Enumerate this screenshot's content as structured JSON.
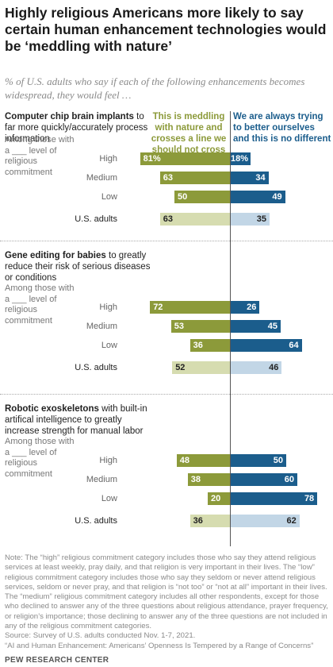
{
  "title": "Highly religious Americans more likely to say certain human enhancement technologies would be ‘meddling with nature’",
  "subtitle": "% of U.S. adults who say if each of the following enhancements becomes widespread, they would feel …",
  "colors": {
    "meddle_strong": "#8c9a3a",
    "meddle_light": "#d6dcb0",
    "better_strong": "#1b5d8c",
    "better_light": "#c2d6e6"
  },
  "headers": {
    "left": "This is meddling with nature and crosses a line we should not cross",
    "right": "We are always trying to better ourselves and this is no different"
  },
  "group_label": "Among those with a ___ level of religious commitment",
  "row_labels": [
    "High",
    "Medium",
    "Low",
    "U.S. adults"
  ],
  "chart_data": [
    {
      "type": "bar",
      "title_bold": "Computer chip brain implants",
      "title_rest": " to far more quickly/accurately process information",
      "categories": [
        "High",
        "Medium",
        "Low",
        "U.S. adults"
      ],
      "series": [
        {
          "name": "This is meddling with nature and crosses a line we should not cross",
          "values": [
            81,
            63,
            50,
            63
          ],
          "labels": [
            "81%",
            "63",
            "50",
            "63"
          ]
        },
        {
          "name": "We are always trying to better ourselves and this is no different",
          "values": [
            18,
            34,
            49,
            35
          ],
          "labels": [
            "18%",
            "34",
            "49",
            "35"
          ]
        }
      ]
    },
    {
      "type": "bar",
      "title_bold": "Gene editing for babies",
      "title_rest": " to greatly reduce their risk of serious diseases or conditions",
      "categories": [
        "High",
        "Medium",
        "Low",
        "U.S. adults"
      ],
      "series": [
        {
          "name": "This is meddling with nature and crosses a line we should not cross",
          "values": [
            72,
            53,
            36,
            52
          ],
          "labels": [
            "72",
            "53",
            "36",
            "52"
          ]
        },
        {
          "name": "We are always trying to better ourselves and this is no different",
          "values": [
            26,
            45,
            64,
            46
          ],
          "labels": [
            "26",
            "45",
            "64",
            "46"
          ]
        }
      ]
    },
    {
      "type": "bar",
      "title_bold": "Robotic exoskeletons",
      "title_rest": " with built-in artifical intelligence to greatly increase strength for manual labor",
      "categories": [
        "High",
        "Medium",
        "Low",
        "U.S. adults"
      ],
      "series": [
        {
          "name": "This is meddling with nature and crosses a line we should not cross",
          "values": [
            48,
            38,
            20,
            36
          ],
          "labels": [
            "48",
            "38",
            "20",
            "36"
          ]
        },
        {
          "name": "We are always trying to better ourselves and this is no different",
          "values": [
            50,
            60,
            78,
            62
          ],
          "labels": [
            "50",
            "60",
            "78",
            "62"
          ]
        }
      ]
    }
  ],
  "note": "Note: The “high” religious commitment category includes those who say they attend religious services at least weekly, pray daily, and that religion is very important in their lives. The “low” religious commitment category includes those who say they seldom or never attend religious services, seldom or never pray, and that religion is “not too” or “not at all” important in their lives. The “medium” religious commitment category includes all other respondents, except for those who declined to answer any of the three questions about religious attendance, prayer frequency, or religion’s importance; those declining to answer any of the three questions are not included in any of the religious commitment categories.",
  "source": "Source: Survey of U.S. adults conducted Nov. 1-7, 2021.",
  "report": "“AI and Human Enhancement: Americans’ Openness Is Tempered by a Range of Concerns”",
  "brand": "PEW RESEARCH CENTER"
}
